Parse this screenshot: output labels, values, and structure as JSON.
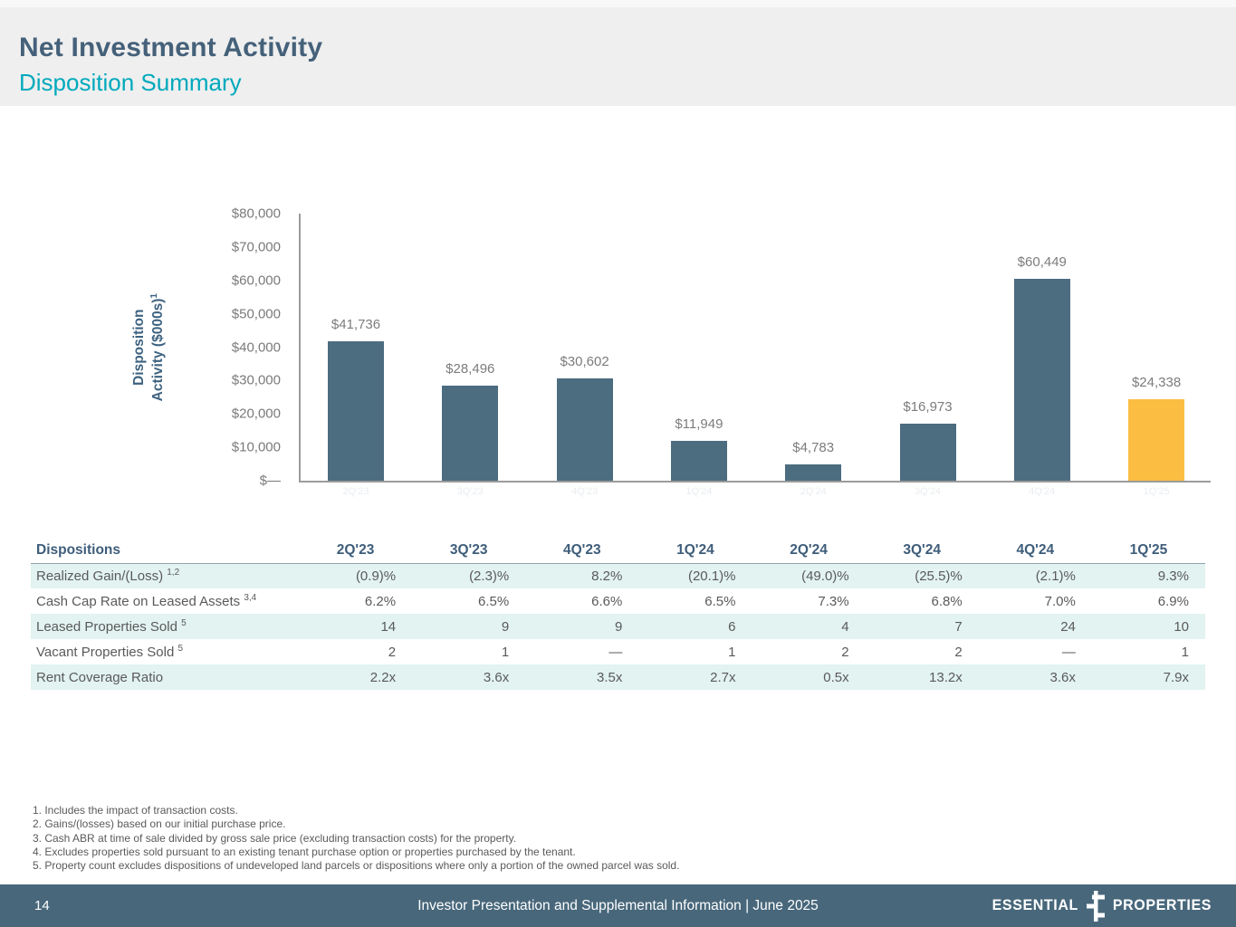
{
  "header": {
    "title": "Net Investment Activity",
    "subtitle": "Disposition Summary"
  },
  "chart_data": {
    "type": "bar",
    "categories": [
      "2Q'23",
      "3Q'23",
      "4Q'23",
      "1Q'24",
      "2Q'24",
      "3Q'24",
      "4Q'24",
      "1Q'25"
    ],
    "values": [
      41736,
      28496,
      30602,
      11949,
      4783,
      16973,
      60449,
      24338
    ],
    "bar_labels": [
      "$41,736",
      "$28,496",
      "$30,602",
      "$11,949",
      "$4,783",
      "$16,973",
      "$60,449",
      "$24,338"
    ],
    "ylabel_line1": "Disposition",
    "ylabel_line2": "Activity ($000s)",
    "ylabel_sup": "1",
    "ylim": [
      0,
      80000
    ],
    "yticks": [
      {
        "label": "$80,000",
        "value": 80000
      },
      {
        "label": "$70,000",
        "value": 70000
      },
      {
        "label": "$60,000",
        "value": 60000
      },
      {
        "label": "$50,000",
        "value": 50000
      },
      {
        "label": "$40,000",
        "value": 40000
      },
      {
        "label": "$30,000",
        "value": 30000
      },
      {
        "label": "$20,000",
        "value": 20000
      },
      {
        "label": "$10,000",
        "value": 10000
      },
      {
        "label": "$—",
        "value": 0
      }
    ],
    "grid": false,
    "legend": "none",
    "bar_color": "#4c6c80",
    "highlight_color": "#fbbd42",
    "highlight_index": 7
  },
  "table": {
    "first_header": "Dispositions",
    "columns": [
      "2Q'23",
      "3Q'23",
      "4Q'23",
      "1Q'24",
      "2Q'24",
      "3Q'24",
      "4Q'24",
      "1Q'25"
    ],
    "rows": [
      {
        "label": "Realized Gain/(Loss)",
        "sup": "1,2",
        "values": [
          "(0.9)%",
          "(2.3)%",
          "8.2%",
          "(20.1)%",
          "(49.0)%",
          "(25.5)%",
          "(2.1)%",
          "9.3%"
        ]
      },
      {
        "label": "Cash Cap Rate on Leased Assets",
        "sup": "3,4",
        "values": [
          "6.2%",
          "6.5%",
          "6.6%",
          "6.5%",
          "7.3%",
          "6.8%",
          "7.0%",
          "6.9%"
        ]
      },
      {
        "label": "Leased Properties Sold",
        "sup": "5",
        "values": [
          "14",
          "9",
          "9",
          "6",
          "4",
          "7",
          "24",
          "10"
        ]
      },
      {
        "label": "Vacant Properties Sold",
        "sup": "5",
        "values": [
          "2",
          "1",
          "—",
          "1",
          "2",
          "2",
          "—",
          "1"
        ]
      },
      {
        "label": "Rent Coverage Ratio",
        "sup": "",
        "values": [
          "2.2x",
          "3.6x",
          "3.5x",
          "2.7x",
          "0.5x",
          "13.2x",
          "3.6x",
          "7.9x"
        ]
      }
    ]
  },
  "footnotes": [
    "1. Includes the impact of transaction costs.",
    "2. Gains/(losses) based on our initial purchase price.",
    "3. Cash ABR at time of sale divided by gross sale price (excluding transaction costs) for the property.",
    "4. Excludes properties sold pursuant to an existing tenant purchase option or properties purchased by the tenant.",
    "5. Property count excludes dispositions of undeveloped land parcels or dispositions where only a portion of the owned parcel was sold."
  ],
  "footer": {
    "page_number": "14",
    "center_text": "Investor Presentation and Supplemental Information | June 2025",
    "logo_word_1": "ESSENTIAL",
    "logo_word_2": "PROPERTIES"
  },
  "colors": {
    "title": "#45617a",
    "subtitle": "#00a9bc",
    "bar": "#4c6c80",
    "highlight_bar": "#fbbd42",
    "table_alt_row": "#e2f3f1",
    "footer_bg": "#48677b",
    "header_band_bg": "#efefef"
  }
}
